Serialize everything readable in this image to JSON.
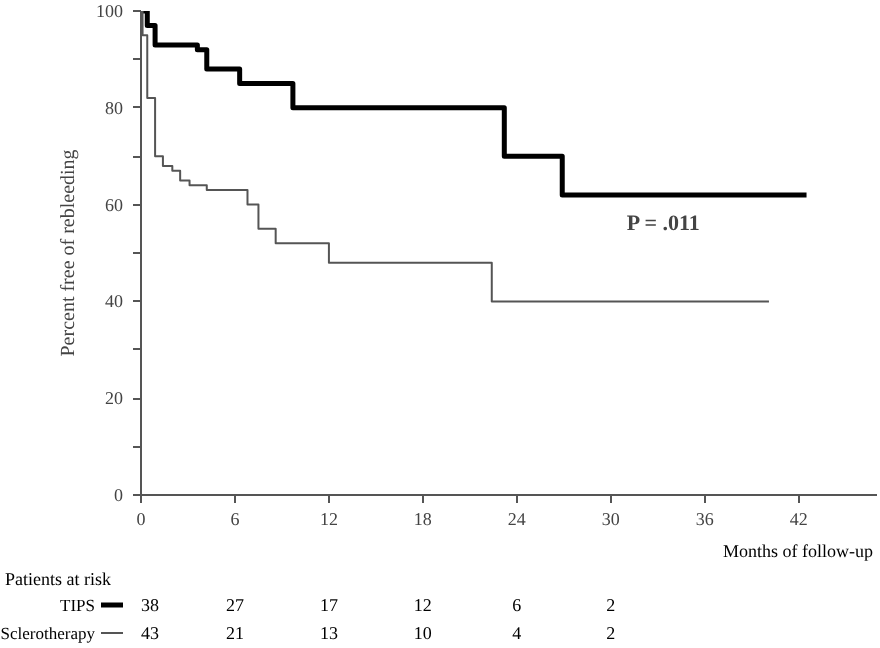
{
  "chart_data": {
    "type": "step",
    "xlabel": "Months of follow-up",
    "ylabel": "Percent free of rebleeding",
    "xlim": [
      0,
      47
    ],
    "ylim": [
      0,
      100
    ],
    "xticks": [
      0,
      6,
      12,
      18,
      24,
      30,
      36,
      42
    ],
    "yticks": [
      0,
      {
        "value": 10,
        "label": null
      },
      20,
      {
        "value": 30,
        "label": null
      },
      40,
      {
        "value": 50,
        "label": null
      },
      60,
      {
        "value": 70,
        "label": null
      },
      80,
      {
        "value": 90,
        "label": null
      },
      100
    ],
    "legend": "bottom",
    "series": [
      {
        "name": "TIPS",
        "color": "#000000",
        "x": [
          0,
          0.4,
          0.9,
          3.6,
          4.2,
          6.3,
          9.7,
          23.2,
          26.9,
          42.5
        ],
        "values": [
          100,
          97,
          93,
          92,
          88,
          85,
          80,
          70,
          62,
          62
        ]
      },
      {
        "name": "Sclerotherapy",
        "color": "#555555",
        "x": [
          0,
          0.1,
          0.4,
          0.9,
          1.4,
          2.0,
          2.5,
          3.1,
          4.2,
          6.8,
          7.5,
          8.6,
          12,
          22.4,
          40.1
        ],
        "values": [
          100,
          95,
          82,
          70,
          68,
          67,
          65,
          64,
          63,
          60,
          55,
          52,
          48,
          40,
          40
        ]
      }
    ],
    "annotations": [
      "P = .011",
      "Patients at risk",
      "38",
      "27",
      "17",
      "12",
      "6",
      "2",
      "43",
      "21",
      "13",
      "10",
      "4",
      "2"
    ]
  }
}
